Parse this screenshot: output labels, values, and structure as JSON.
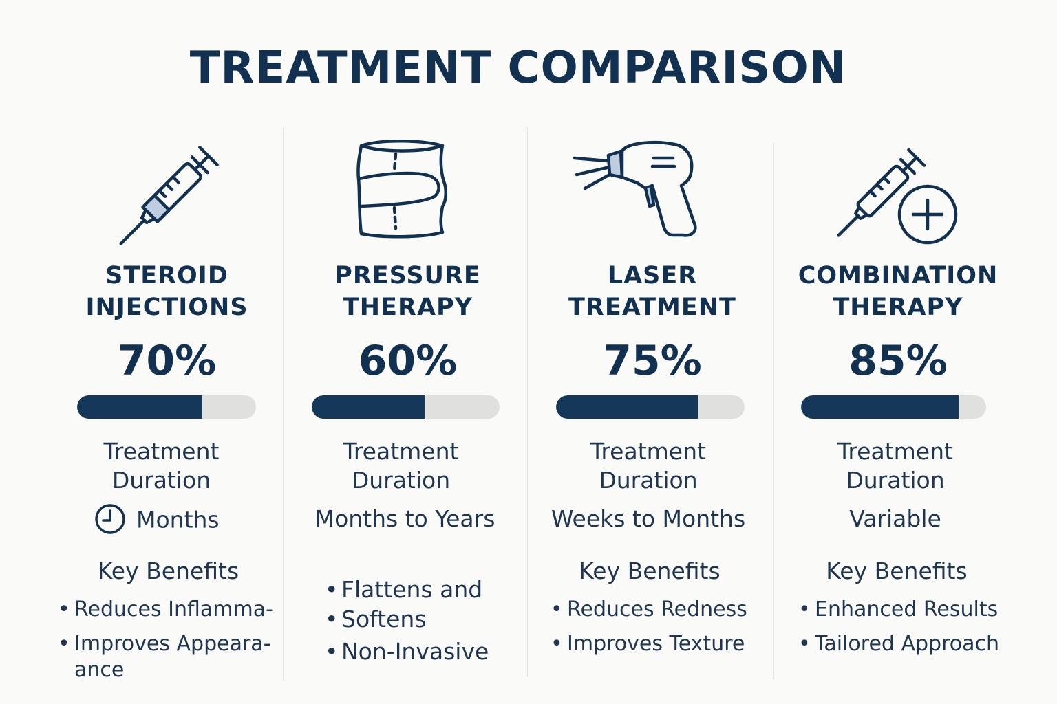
{
  "title": "TREATMENT COMPARISON",
  "colors": {
    "navy": "#12304f",
    "bar_fill": "#15385a",
    "bar_track": "#e0e0df",
    "icon_accent": "#bfcde0"
  },
  "treatments": [
    {
      "icon": "syringe-icon",
      "name_line1": "STEROID",
      "name_line2": "INJECTIONS",
      "percent_label": "70%",
      "percent_value": 70,
      "duration_line1": "Treatment",
      "duration_line2": "Duration",
      "duration_icon": "clock-icon",
      "duration_value": "Months",
      "benefits_title": "Key Benefits",
      "benefits": [
        "Reduces Inflamma-",
        "Improves Appeara-",
        "ance"
      ]
    },
    {
      "icon": "compression-sleeve-icon",
      "name_line1": "PRESSURE",
      "name_line2": "THERAPY",
      "percent_label": "60%",
      "percent_value": 60,
      "duration_line1": "Treatment",
      "duration_line2": "Duration",
      "duration_value": "Months to Years",
      "benefits": [
        "Flattens and",
        "Softens",
        "Non-Invasive"
      ]
    },
    {
      "icon": "laser-device-icon",
      "name_line1": "LASER",
      "name_line2": "TREATMENT",
      "percent_label": "75%",
      "percent_value": 75,
      "duration_line1": "Treatment",
      "duration_line2": "Duration",
      "duration_value": "Weeks to Months",
      "benefits_title": "Key Benefits",
      "benefits": [
        "Reduces Redness",
        "Improves Texture"
      ]
    },
    {
      "icon": "syringe-plus-icon",
      "name_line1": "COMBINATION",
      "name_line2": "THERAPY",
      "percent_label": "85%",
      "percent_value": 85,
      "duration_line1": "Treatment",
      "duration_line2": "Duration",
      "duration_value": "Variable",
      "benefits_title": "Key Benefits",
      "benefits": [
        "Enhanced Results",
        "Tailored Approach"
      ]
    }
  ]
}
